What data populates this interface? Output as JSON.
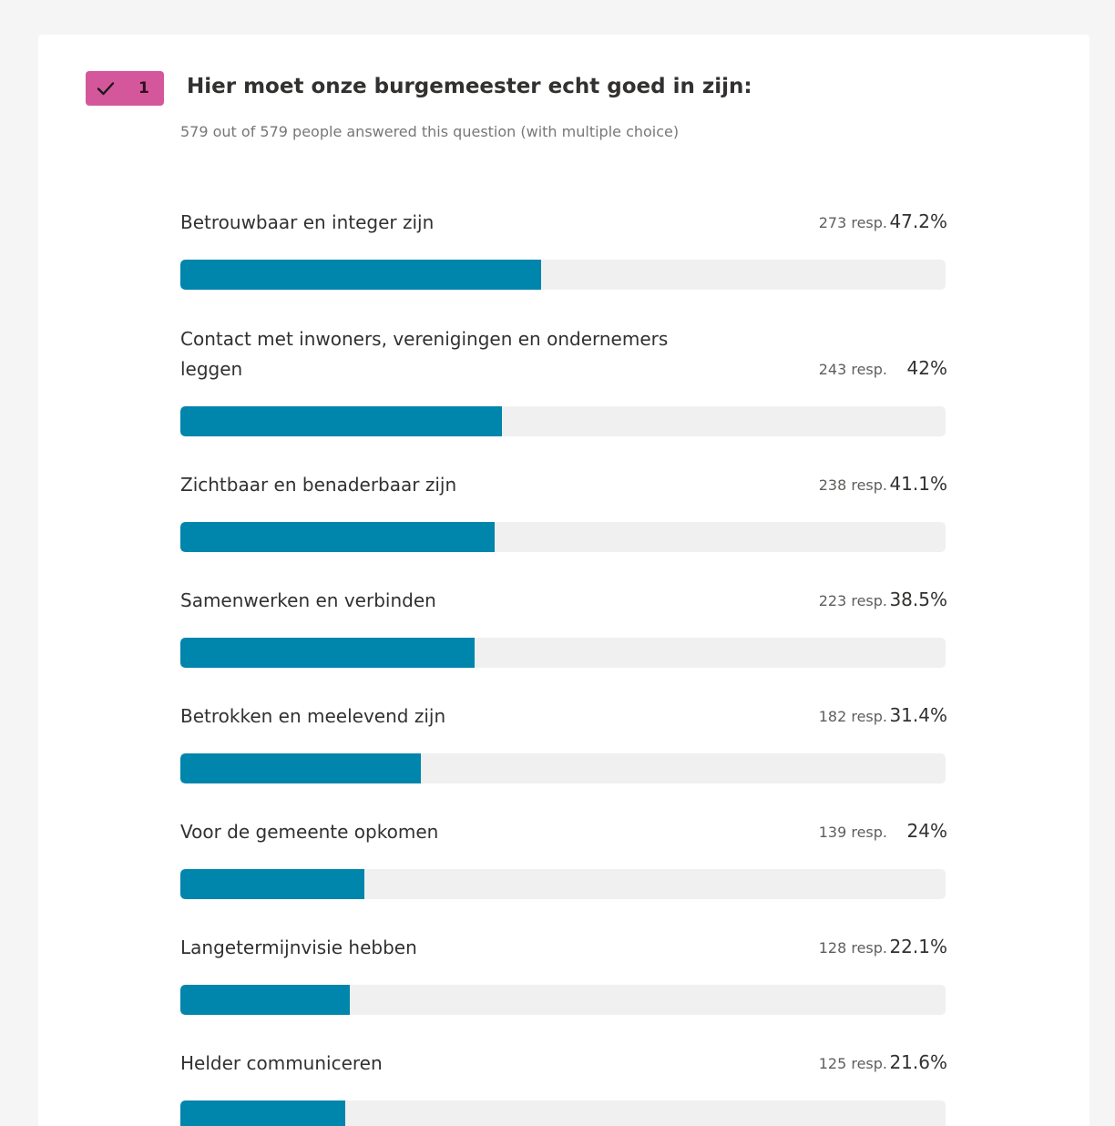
{
  "question": {
    "number": "1",
    "title": "Hier moet onze burgemeester echt goed in zijn:",
    "subtitle": "579 out of 579 people answered this question (with multiple choice)",
    "badge_color": "#d5579b"
  },
  "colors": {
    "bar_fill": "#0085ad",
    "bar_track": "#f0f0f0"
  },
  "options": [
    {
      "label": "Betrouwbaar en integer zijn",
      "resp": "273 resp.",
      "pct": "47.2%",
      "value": 47.2
    },
    {
      "label": "Contact met inwoners, verenigingen en ondernemers leggen",
      "resp": "243 resp.",
      "pct": "42%",
      "value": 42
    },
    {
      "label": "Zichtbaar en benaderbaar zijn",
      "resp": "238 resp.",
      "pct": "41.1%",
      "value": 41.1
    },
    {
      "label": "Samenwerken en verbinden",
      "resp": "223 resp.",
      "pct": "38.5%",
      "value": 38.5
    },
    {
      "label": "Betrokken en meelevend zijn",
      "resp": "182 resp.",
      "pct": "31.4%",
      "value": 31.4
    },
    {
      "label": "Voor de gemeente opkomen",
      "resp": "139 resp.",
      "pct": "24%",
      "value": 24
    },
    {
      "label": "Langetermijnvisie hebben",
      "resp": "128 resp.",
      "pct": "22.1%",
      "value": 22.1
    },
    {
      "label": "Helder communiceren",
      "resp": "125 resp.",
      "pct": "21.6%",
      "value": 21.6
    }
  ]
}
